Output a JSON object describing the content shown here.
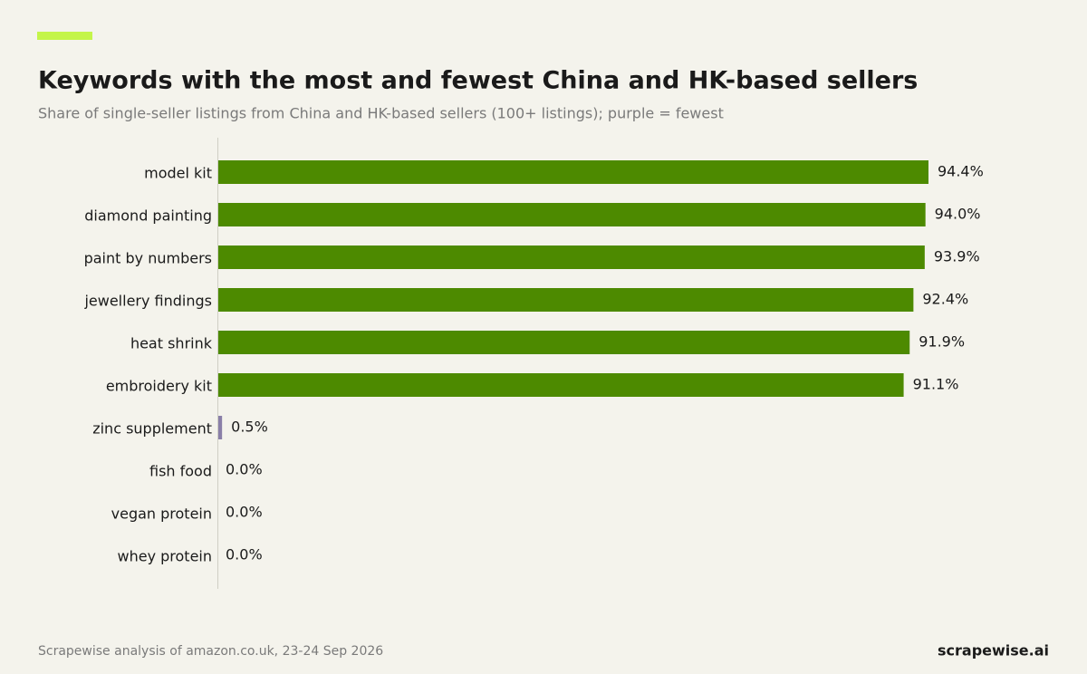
{
  "chart_data": {
    "type": "barh",
    "title": "Keywords with the most and fewest China and HK-based sellers",
    "subtitle": "Share of single-seller listings from China and HK-based sellers (100+ listings); purple = fewest",
    "categories": [
      "model kit",
      "diamond painting",
      "paint by numbers",
      "jewellery findings",
      "heat shrink",
      "embroidery kit",
      "zinc supplement",
      "fish food",
      "vegan protein",
      "whey protein"
    ],
    "values": [
      94.4,
      94.0,
      93.9,
      92.4,
      91.9,
      91.1,
      0.5,
      0.0,
      0.0,
      0.0
    ],
    "value_labels": [
      "94.4%",
      "94.0%",
      "93.9%",
      "92.4%",
      "91.9%",
      "91.1%",
      "0.5%",
      "0.0%",
      "0.0%",
      "0.0%"
    ],
    "colors": [
      "#4d8a00",
      "#4d8a00",
      "#4d8a00",
      "#4d8a00",
      "#4d8a00",
      "#4d8a00",
      "#8a7fa8",
      "#8a7fa8",
      "#8a7fa8",
      "#8a7fa8"
    ],
    "xlim": [
      0,
      100
    ],
    "source": "Scrapewise analysis of amazon.co.uk, 23-24 Sep 2026",
    "brand": "scrapewise.ai"
  }
}
